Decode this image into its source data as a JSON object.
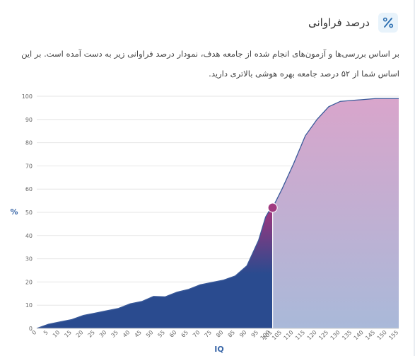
{
  "header": {
    "title": "درصد فراوانی",
    "icon": "percent-icon",
    "icon_color": "#2a6db0",
    "icon_bg": "#e8f3fb"
  },
  "description": "بر اساس بررسی‌ها و آزمون‌های انجام شده از جامعه هدف، نمودار درصد فراوانی زیر به دست آمده است. بر این اساس شما از ۵۲ درصد جامعه بهره هوشی بالاتری دارید.",
  "chart_data": {
    "type": "area",
    "xlabel": "IQ",
    "ylabel": "%",
    "xlim": [
      0,
      155
    ],
    "ylim": [
      0,
      100
    ],
    "x_ticks": [
      0,
      5,
      10,
      15,
      20,
      25,
      30,
      35,
      40,
      45,
      50,
      55,
      60,
      65,
      70,
      75,
      80,
      85,
      90,
      95,
      100,
      101,
      105,
      110,
      115,
      120,
      125,
      130,
      135,
      140,
      145,
      150,
      155
    ],
    "y_ticks": [
      0,
      10,
      20,
      30,
      40,
      50,
      60,
      70,
      80,
      90,
      100
    ],
    "grid": true,
    "marker": {
      "x": 101,
      "y": 52
    },
    "colors": {
      "filled_bottom": "#2a4b8f",
      "filled_top": "#a2357d",
      "rest_top": "#d9a5cb",
      "rest_bottom": "#a9b9d9",
      "line": "#3a5a9a",
      "marker": "#a03a80"
    },
    "points": [
      [
        0,
        0
      ],
      [
        5,
        1.8
      ],
      [
        10,
        2.8
      ],
      [
        15,
        3.8
      ],
      [
        20,
        5.6
      ],
      [
        25,
        6.6
      ],
      [
        30,
        7.6
      ],
      [
        35,
        8.6
      ],
      [
        40,
        10.6
      ],
      [
        45,
        11.6
      ],
      [
        50,
        13.8
      ],
      [
        55,
        13.6
      ],
      [
        60,
        15.6
      ],
      [
        65,
        16.8
      ],
      [
        70,
        18.8
      ],
      [
        75,
        19.8
      ],
      [
        80,
        20.8
      ],
      [
        85,
        22.6
      ],
      [
        90,
        27
      ],
      [
        95,
        38
      ],
      [
        98,
        48
      ],
      [
        100,
        51.4
      ],
      [
        101,
        52
      ],
      [
        103,
        56
      ],
      [
        105,
        60
      ],
      [
        110,
        71
      ],
      [
        115,
        83
      ],
      [
        120,
        90
      ],
      [
        125,
        95.5
      ],
      [
        130,
        97.8
      ],
      [
        135,
        98.2
      ],
      [
        140,
        98.6
      ],
      [
        145,
        99
      ],
      [
        150,
        99
      ],
      [
        155,
        99
      ]
    ]
  }
}
